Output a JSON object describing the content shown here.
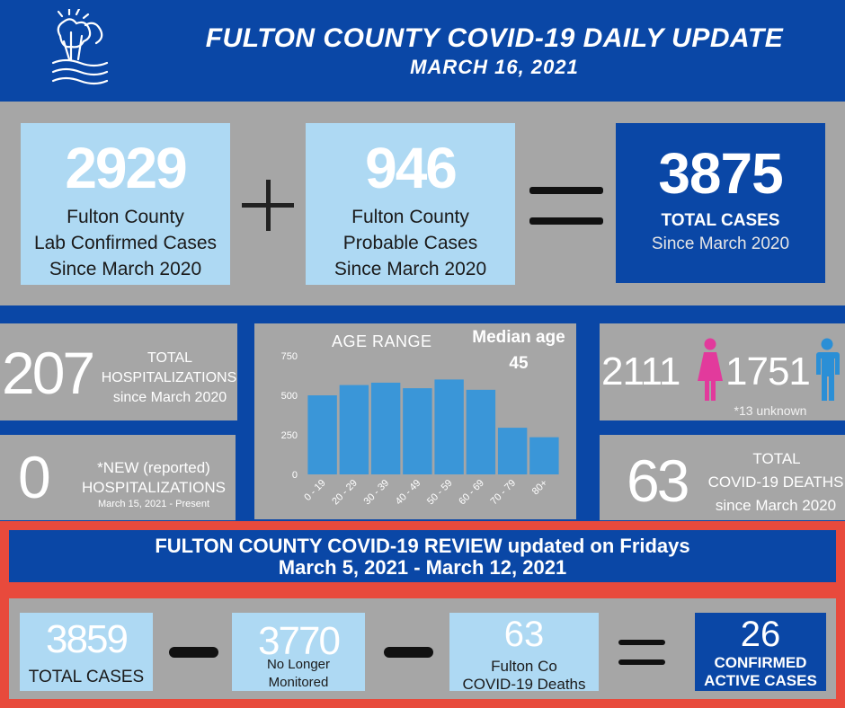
{
  "header": {
    "title": "FULTON COUNTY COVID-19 DAILY UPDATE",
    "date": "MARCH 16, 2021"
  },
  "summary": {
    "confirmed": {
      "value": "2929",
      "line1": "Fulton County",
      "line2": "Lab Confirmed Cases",
      "line3": "Since March 2020"
    },
    "probable": {
      "value": "946",
      "line1": "Fulton County",
      "line2": "Probable Cases",
      "line3": "Since March 2020"
    },
    "total": {
      "value": "3875",
      "label": "TOTAL CASES",
      "since": "Since March 2020"
    }
  },
  "hospitalizations": {
    "value": "207",
    "line1": "TOTAL",
    "line2": "HOSPITALIZATIONS",
    "line3": "since March 2020"
  },
  "new_hospitalizations": {
    "value": "0",
    "line1": "*NEW (reported)",
    "line2": "HOSPITALIZATIONS",
    "line3": "March 15,  2021 - Present"
  },
  "gender": {
    "female": "2111",
    "male": "1751",
    "unknown": "*13 unknown",
    "female_color": "#e23a9c",
    "male_color": "#2b8fd6"
  },
  "deaths": {
    "value": "63",
    "line1": "TOTAL",
    "line2": "COVID-19 DEATHS",
    "line3": "since March 2020"
  },
  "median": {
    "label": "Median age",
    "value": "45"
  },
  "chart_data": {
    "type": "bar",
    "title": "AGE RANGE",
    "categories": [
      "0 - 19",
      "20 - 29",
      "30 - 39",
      "40 - 49",
      "50 - 59",
      "60 - 69",
      "70 - 79",
      "80+"
    ],
    "values": [
      500,
      565,
      580,
      545,
      600,
      535,
      295,
      235
    ],
    "yticks": [
      "0",
      "250",
      "500",
      "750"
    ],
    "ylim": [
      0,
      750
    ],
    "bar_color": "#3a96d8"
  },
  "review": {
    "title_line1": "FULTON COUNTY COVID-19 REVIEW updated on Fridays",
    "title_line2": "March 5, 2021 - March 12, 2021",
    "total": {
      "value": "3859",
      "label": "TOTAL CASES"
    },
    "no_longer": {
      "value": "3770",
      "line1": "No Longer",
      "line2": "Monitored"
    },
    "deaths": {
      "value": "63",
      "line1": "Fulton Co",
      "line2": "COVID-19 Deaths"
    },
    "active": {
      "value": "26",
      "line1": "CONFIRMED",
      "line2": "ACTIVE CASES"
    }
  },
  "colors": {
    "brand_blue": "#0a47a6",
    "gray": "#a6a6a6",
    "light_blue": "#aed9f3",
    "review_border": "#e84a3c"
  }
}
